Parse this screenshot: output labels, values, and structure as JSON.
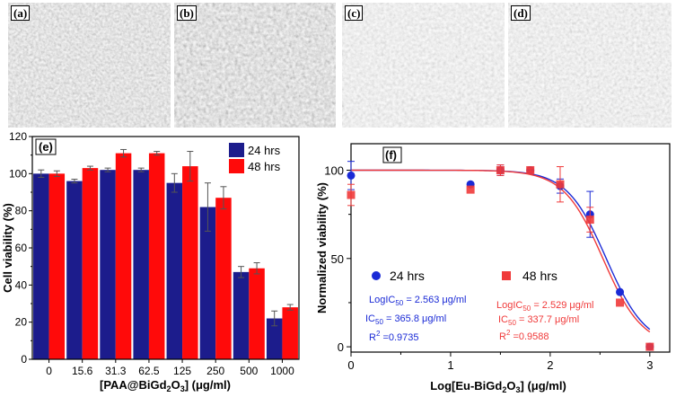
{
  "panels": {
    "a": {
      "label": "(a)"
    },
    "b": {
      "label": "(b)"
    },
    "c": {
      "label": "(c)"
    },
    "d": {
      "label": "(d)"
    }
  },
  "chart_data": [
    {
      "type": "bar",
      "panel_label": "(e)",
      "title": "",
      "xlabel_parts": [
        "[PAA@BiGd",
        "2",
        "O",
        "3",
        "] (μg/ml)"
      ],
      "ylabel": "Cell viability (%)",
      "ylim": [
        0,
        120
      ],
      "yticks": [
        "0",
        "20",
        "40",
        "60",
        "80",
        "100",
        "120"
      ],
      "categories": [
        "0",
        "15.6",
        "31.3",
        "62.5",
        "125",
        "250",
        "500",
        "1000"
      ],
      "legend_position": "top-right",
      "series": [
        {
          "name": "24 hrs",
          "color": "#1c1c8c",
          "values": [
            100,
            96,
            102,
            102,
            95,
            82,
            47,
            22
          ],
          "errors": [
            2,
            1,
            1,
            1,
            5,
            13,
            3,
            4
          ]
        },
        {
          "name": "48 hrs",
          "color": "#ff0a0a",
          "values": [
            100,
            103,
            111,
            111,
            104,
            87,
            49,
            28
          ],
          "errors": [
            1.5,
            1,
            2,
            1,
            8,
            6,
            3,
            1.5
          ]
        }
      ]
    },
    {
      "type": "scatter",
      "panel_label": "(f)",
      "xlabel_parts": [
        "Log[Eu-BiGd",
        "2",
        "O",
        "3",
        "] (μg/ml)"
      ],
      "ylabel": "Normalized viability (%)",
      "xlim": [
        0,
        3.2
      ],
      "ylim": [
        -3,
        115
      ],
      "xticks": [
        "0",
        "1",
        "2",
        "3"
      ],
      "yticks": [
        "0",
        "50",
        "100"
      ],
      "series": [
        {
          "name": "24 hrs",
          "color": "#1a2ad6",
          "marker": "circle",
          "x": [
            0,
            1.2,
            1.5,
            1.8,
            2.1,
            2.4,
            2.7,
            3.0
          ],
          "y": [
            97,
            92,
            100,
            100,
            91,
            75,
            31,
            0
          ],
          "errors": [
            8,
            0,
            3,
            1,
            4,
            13,
            0,
            0
          ],
          "fit": {
            "logIC50": 2.563,
            "hill": 2.2,
            "top": 100,
            "bottom": 0
          },
          "annotation": {
            "logic": "LogIC",
            "logic_val": " = 2.563 μg/ml",
            "ic": "IC",
            "ic_val": " = 365.8 μg/ml",
            "r2_label": "R",
            "r2_val": " =0.9735"
          }
        },
        {
          "name": "48 hrs",
          "color": "#f03a3a",
          "marker": "square",
          "x": [
            0,
            1.2,
            1.5,
            1.8,
            2.1,
            2.4,
            2.7,
            3.0
          ],
          "y": [
            86,
            89,
            100,
            100,
            92,
            72,
            25,
            0
          ],
          "errors": [
            6,
            0,
            3,
            1,
            10,
            7,
            0,
            0
          ],
          "fit": {
            "logIC50": 2.529,
            "hill": 2.2,
            "top": 100,
            "bottom": 0
          },
          "annotation": {
            "logic": "LogIC",
            "logic_val": " = 2.529 μg/ml",
            "ic": "IC",
            "ic_val": " = 337.7 μg/ml",
            "r2_label": "R",
            "r2_val": " =0.9588"
          }
        }
      ],
      "sub50": "50",
      "sup2": "2"
    }
  ]
}
